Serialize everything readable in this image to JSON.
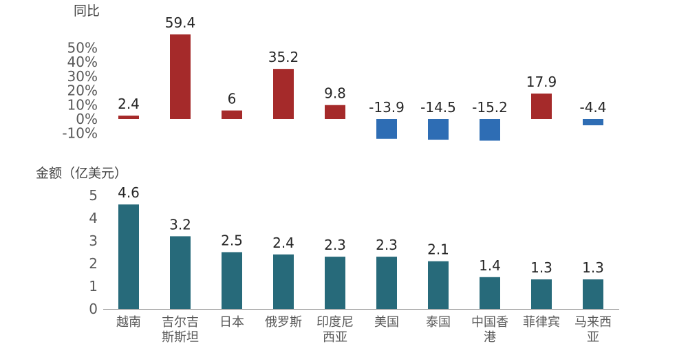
{
  "chart_data": [
    {
      "type": "bar",
      "title": "",
      "ylabel": "同比",
      "xlabel": "",
      "categories": [
        "越南",
        "吉尔吉斯斯坦",
        "日本",
        "俄罗斯",
        "印度尼西亚",
        "美国",
        "泰国",
        "中国香港",
        "菲律宾",
        "马来西亚"
      ],
      "category_lines": [
        [
          "越南"
        ],
        [
          "吉尔吉",
          "斯斯坦"
        ],
        [
          "日本"
        ],
        [
          "俄罗斯"
        ],
        [
          "印度尼",
          "西亚"
        ],
        [
          "美国"
        ],
        [
          "泰国"
        ],
        [
          "中国香",
          "港"
        ],
        [
          "菲律宾"
        ],
        [
          "马来西",
          "亚"
        ]
      ],
      "values": [
        2.4,
        59.4,
        6,
        35.2,
        9.8,
        -13.9,
        -14.5,
        -15.2,
        17.9,
        -4.4
      ],
      "data_labels": [
        "2.4",
        "59.4",
        "6",
        "35.2",
        "9.8",
        "-13.9",
        "-14.5",
        "-15.2",
        "17.9",
        "-4.4"
      ],
      "yticks": [
        50,
        40,
        30,
        20,
        10,
        0,
        -10
      ],
      "ytick_labels": [
        "50%",
        "40%",
        "30%",
        "20%",
        "10%",
        "0%",
        "-10%"
      ],
      "ylim": [
        -10,
        60
      ],
      "grid": false,
      "colors": {
        "positive": "#a52a2a",
        "negative": "#2e6db4"
      }
    },
    {
      "type": "bar",
      "title": "",
      "ylabel": "金额（亿美元）",
      "xlabel": "",
      "categories": [
        "越南",
        "吉尔吉斯斯坦",
        "日本",
        "俄罗斯",
        "印度尼西亚",
        "美国",
        "泰国",
        "中国香港",
        "菲律宾",
        "马来西亚"
      ],
      "category_lines": [
        [
          "越南"
        ],
        [
          "吉尔吉",
          "斯斯坦"
        ],
        [
          "日本"
        ],
        [
          "俄罗斯"
        ],
        [
          "印度尼",
          "西亚"
        ],
        [
          "美国"
        ],
        [
          "泰国"
        ],
        [
          "中国香",
          "港"
        ],
        [
          "菲律宾"
        ],
        [
          "马来西",
          "亚"
        ]
      ],
      "values": [
        4.6,
        3.2,
        2.5,
        2.4,
        2.3,
        2.3,
        2.1,
        1.4,
        1.3,
        1.3
      ],
      "data_labels": [
        "4.6",
        "3.2",
        "2.5",
        "2.4",
        "2.3",
        "2.3",
        "2.1",
        "1.4",
        "1.3",
        "1.3"
      ],
      "yticks": [
        0,
        1,
        2,
        3,
        4,
        5
      ],
      "ytick_labels": [
        "0",
        "1",
        "2",
        "3",
        "4",
        "5"
      ],
      "ylim": [
        0,
        5
      ],
      "grid": false,
      "colors": {
        "bar": "#276a7a",
        "axis": "#8c8c8c"
      }
    }
  ]
}
